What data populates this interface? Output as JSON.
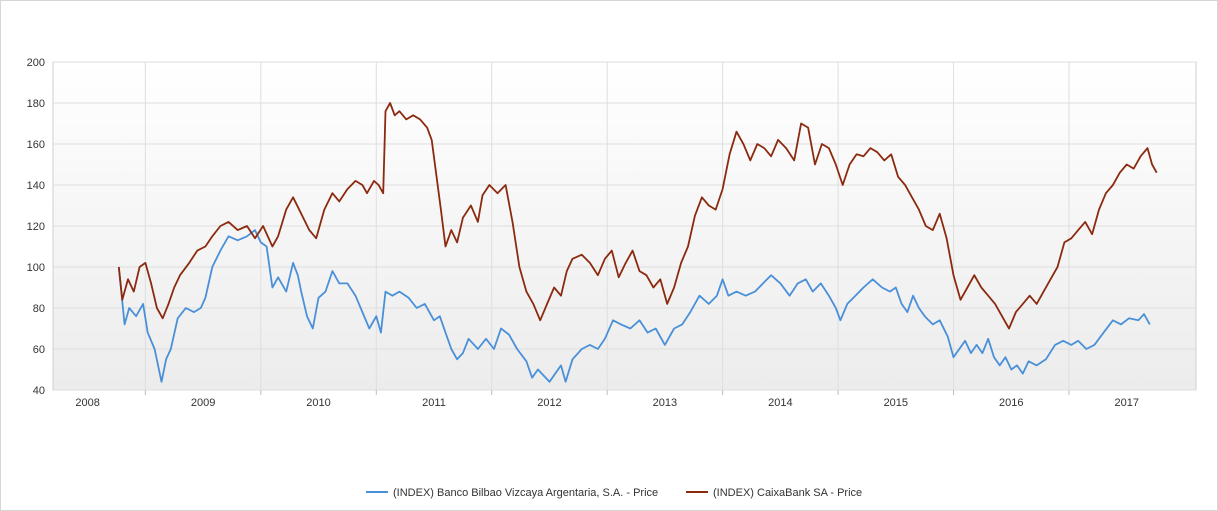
{
  "chart_data": {
    "type": "line",
    "title": "",
    "xlabel": "",
    "ylabel": "",
    "ylim": [
      40,
      200
    ],
    "yticks": [
      40,
      60,
      80,
      100,
      120,
      140,
      160,
      180,
      200
    ],
    "xlim": [
      2007.7,
      2017.6
    ],
    "xticks": [
      {
        "label": "2008",
        "x": 2008.0
      },
      {
        "label": "2009",
        "x": 2009.0
      },
      {
        "label": "2010",
        "x": 2010.0
      },
      {
        "label": "2011",
        "x": 2011.0
      },
      {
        "label": "2012",
        "x": 2012.0
      },
      {
        "label": "2013",
        "x": 2013.0
      },
      {
        "label": "2014",
        "x": 2014.0
      },
      {
        "label": "2015",
        "x": 2015.0
      },
      {
        "label": "2016",
        "x": 2016.0
      },
      {
        "label": "2017",
        "x": 2017.0
      }
    ],
    "grid": true,
    "legend_position": "bottom-center",
    "series": [
      {
        "name": "(INDEX) Banco Bilbao Vizcaya Argentaria, S.A. - Price",
        "color": "#4a90d9",
        "points": [
          [
            2008.27,
            100
          ],
          [
            2008.32,
            72
          ],
          [
            2008.36,
            80
          ],
          [
            2008.42,
            76
          ],
          [
            2008.48,
            82
          ],
          [
            2008.52,
            68
          ],
          [
            2008.58,
            60
          ],
          [
            2008.64,
            44
          ],
          [
            2008.68,
            55
          ],
          [
            2008.72,
            60
          ],
          [
            2008.78,
            75
          ],
          [
            2008.85,
            80
          ],
          [
            2008.92,
            78
          ],
          [
            2008.98,
            80
          ],
          [
            2009.02,
            85
          ],
          [
            2009.08,
            100
          ],
          [
            2009.15,
            108
          ],
          [
            2009.22,
            115
          ],
          [
            2009.3,
            113
          ],
          [
            2009.38,
            115
          ],
          [
            2009.45,
            118
          ],
          [
            2009.5,
            112
          ],
          [
            2009.55,
            110
          ],
          [
            2009.6,
            90
          ],
          [
            2009.65,
            95
          ],
          [
            2009.72,
            88
          ],
          [
            2009.78,
            102
          ],
          [
            2009.82,
            96
          ],
          [
            2009.85,
            88
          ],
          [
            2009.9,
            76
          ],
          [
            2009.95,
            70
          ],
          [
            2010.0,
            85
          ],
          [
            2010.06,
            88
          ],
          [
            2010.12,
            98
          ],
          [
            2010.18,
            92
          ],
          [
            2010.25,
            92
          ],
          [
            2010.32,
            86
          ],
          [
            2010.38,
            78
          ],
          [
            2010.44,
            70
          ],
          [
            2010.5,
            76
          ],
          [
            2010.54,
            68
          ],
          [
            2010.58,
            88
          ],
          [
            2010.64,
            86
          ],
          [
            2010.7,
            88
          ],
          [
            2010.78,
            85
          ],
          [
            2010.85,
            80
          ],
          [
            2010.92,
            82
          ],
          [
            2011.0,
            74
          ],
          [
            2011.05,
            76
          ],
          [
            2011.1,
            68
          ],
          [
            2011.15,
            60
          ],
          [
            2011.2,
            55
          ],
          [
            2011.25,
            58
          ],
          [
            2011.3,
            65
          ],
          [
            2011.38,
            60
          ],
          [
            2011.45,
            65
          ],
          [
            2011.52,
            60
          ],
          [
            2011.58,
            70
          ],
          [
            2011.65,
            67
          ],
          [
            2011.72,
            60
          ],
          [
            2011.8,
            54
          ],
          [
            2011.85,
            46
          ],
          [
            2011.9,
            50
          ],
          [
            2011.95,
            47
          ],
          [
            2012.0,
            44
          ],
          [
            2012.05,
            48
          ],
          [
            2012.1,
            52
          ],
          [
            2012.14,
            44
          ],
          [
            2012.2,
            55
          ],
          [
            2012.28,
            60
          ],
          [
            2012.35,
            62
          ],
          [
            2012.42,
            60
          ],
          [
            2012.48,
            65
          ],
          [
            2012.55,
            74
          ],
          [
            2012.62,
            72
          ],
          [
            2012.7,
            70
          ],
          [
            2012.78,
            74
          ],
          [
            2012.85,
            68
          ],
          [
            2012.92,
            70
          ],
          [
            2013.0,
            62
          ],
          [
            2013.08,
            70
          ],
          [
            2013.15,
            72
          ],
          [
            2013.22,
            78
          ],
          [
            2013.3,
            86
          ],
          [
            2013.38,
            82
          ],
          [
            2013.45,
            86
          ],
          [
            2013.5,
            94
          ],
          [
            2013.55,
            86
          ],
          [
            2013.62,
            88
          ],
          [
            2013.7,
            86
          ],
          [
            2013.78,
            88
          ],
          [
            2013.85,
            92
          ],
          [
            2013.92,
            96
          ],
          [
            2014.0,
            92
          ],
          [
            2014.08,
            86
          ],
          [
            2014.15,
            92
          ],
          [
            2014.22,
            94
          ],
          [
            2014.28,
            88
          ],
          [
            2014.35,
            92
          ],
          [
            2014.42,
            86
          ],
          [
            2014.48,
            80
          ],
          [
            2014.52,
            74
          ],
          [
            2014.58,
            82
          ],
          [
            2014.65,
            86
          ],
          [
            2014.72,
            90
          ],
          [
            2014.8,
            94
          ],
          [
            2014.88,
            90
          ],
          [
            2014.95,
            88
          ],
          [
            2015.0,
            90
          ],
          [
            2015.05,
            82
          ],
          [
            2015.1,
            78
          ],
          [
            2015.15,
            86
          ],
          [
            2015.2,
            80
          ],
          [
            2015.25,
            76
          ],
          [
            2015.32,
            72
          ],
          [
            2015.38,
            74
          ],
          [
            2015.45,
            66
          ],
          [
            2015.5,
            56
          ],
          [
            2015.55,
            60
          ],
          [
            2015.6,
            64
          ],
          [
            2015.65,
            58
          ],
          [
            2015.7,
            62
          ],
          [
            2015.75,
            58
          ],
          [
            2015.8,
            65
          ],
          [
            2015.85,
            56
          ],
          [
            2015.9,
            52
          ],
          [
            2015.95,
            56
          ],
          [
            2016.0,
            50
          ],
          [
            2016.05,
            52
          ],
          [
            2016.1,
            48
          ],
          [
            2016.15,
            54
          ],
          [
            2016.22,
            52
          ],
          [
            2016.3,
            55
          ],
          [
            2016.38,
            62
          ],
          [
            2016.45,
            64
          ],
          [
            2016.52,
            62
          ],
          [
            2016.58,
            64
          ],
          [
            2016.65,
            60
          ],
          [
            2016.72,
            62
          ],
          [
            2016.8,
            68
          ],
          [
            2016.88,
            74
          ],
          [
            2016.95,
            72
          ],
          [
            2017.02,
            75
          ],
          [
            2017.1,
            74
          ],
          [
            2017.15,
            77
          ],
          [
            2017.2,
            72
          ]
        ]
      },
      {
        "name": "(INDEX) CaixaBank SA - Price",
        "color": "#8b2a0e",
        "points": [
          [
            2008.27,
            100
          ],
          [
            2008.3,
            84
          ],
          [
            2008.35,
            94
          ],
          [
            2008.4,
            88
          ],
          [
            2008.45,
            100
          ],
          [
            2008.5,
            102
          ],
          [
            2008.55,
            92
          ],
          [
            2008.6,
            80
          ],
          [
            2008.65,
            75
          ],
          [
            2008.7,
            82
          ],
          [
            2008.75,
            90
          ],
          [
            2008.8,
            96
          ],
          [
            2008.88,
            102
          ],
          [
            2008.95,
            108
          ],
          [
            2009.02,
            110
          ],
          [
            2009.08,
            115
          ],
          [
            2009.15,
            120
          ],
          [
            2009.22,
            122
          ],
          [
            2009.3,
            118
          ],
          [
            2009.38,
            120
          ],
          [
            2009.45,
            114
          ],
          [
            2009.52,
            120
          ],
          [
            2009.6,
            110
          ],
          [
            2009.65,
            115
          ],
          [
            2009.72,
            128
          ],
          [
            2009.78,
            134
          ],
          [
            2009.85,
            126
          ],
          [
            2009.92,
            118
          ],
          [
            2009.98,
            114
          ],
          [
            2010.05,
            128
          ],
          [
            2010.12,
            136
          ],
          [
            2010.18,
            132
          ],
          [
            2010.25,
            138
          ],
          [
            2010.32,
            142
          ],
          [
            2010.38,
            140
          ],
          [
            2010.42,
            136
          ],
          [
            2010.48,
            142
          ],
          [
            2010.52,
            140
          ],
          [
            2010.56,
            136
          ],
          [
            2010.58,
            176
          ],
          [
            2010.62,
            180
          ],
          [
            2010.66,
            174
          ],
          [
            2010.7,
            176
          ],
          [
            2010.76,
            172
          ],
          [
            2010.82,
            174
          ],
          [
            2010.88,
            172
          ],
          [
            2010.94,
            168
          ],
          [
            2010.98,
            162
          ],
          [
            2011.02,
            145
          ],
          [
            2011.06,
            128
          ],
          [
            2011.1,
            110
          ],
          [
            2011.15,
            118
          ],
          [
            2011.2,
            112
          ],
          [
            2011.25,
            124
          ],
          [
            2011.32,
            130
          ],
          [
            2011.38,
            122
          ],
          [
            2011.42,
            135
          ],
          [
            2011.48,
            140
          ],
          [
            2011.55,
            136
          ],
          [
            2011.62,
            140
          ],
          [
            2011.68,
            122
          ],
          [
            2011.74,
            100
          ],
          [
            2011.8,
            88
          ],
          [
            2011.86,
            82
          ],
          [
            2011.92,
            74
          ],
          [
            2011.98,
            82
          ],
          [
            2012.04,
            90
          ],
          [
            2012.1,
            86
          ],
          [
            2012.15,
            98
          ],
          [
            2012.2,
            104
          ],
          [
            2012.28,
            106
          ],
          [
            2012.35,
            102
          ],
          [
            2012.42,
            96
          ],
          [
            2012.48,
            104
          ],
          [
            2012.54,
            108
          ],
          [
            2012.6,
            95
          ],
          [
            2012.66,
            102
          ],
          [
            2012.72,
            108
          ],
          [
            2012.78,
            98
          ],
          [
            2012.84,
            96
          ],
          [
            2012.9,
            90
          ],
          [
            2012.96,
            94
          ],
          [
            2013.02,
            82
          ],
          [
            2013.08,
            90
          ],
          [
            2013.14,
            102
          ],
          [
            2013.2,
            110
          ],
          [
            2013.26,
            125
          ],
          [
            2013.32,
            134
          ],
          [
            2013.38,
            130
          ],
          [
            2013.44,
            128
          ],
          [
            2013.5,
            138
          ],
          [
            2013.56,
            155
          ],
          [
            2013.62,
            166
          ],
          [
            2013.68,
            160
          ],
          [
            2013.74,
            152
          ],
          [
            2013.8,
            160
          ],
          [
            2013.86,
            158
          ],
          [
            2013.92,
            154
          ],
          [
            2013.98,
            162
          ],
          [
            2014.05,
            158
          ],
          [
            2014.12,
            152
          ],
          [
            2014.18,
            170
          ],
          [
            2014.24,
            168
          ],
          [
            2014.3,
            150
          ],
          [
            2014.36,
            160
          ],
          [
            2014.42,
            158
          ],
          [
            2014.48,
            150
          ],
          [
            2014.54,
            140
          ],
          [
            2014.6,
            150
          ],
          [
            2014.66,
            155
          ],
          [
            2014.72,
            154
          ],
          [
            2014.78,
            158
          ],
          [
            2014.84,
            156
          ],
          [
            2014.9,
            152
          ],
          [
            2014.96,
            155
          ],
          [
            2015.02,
            144
          ],
          [
            2015.08,
            140
          ],
          [
            2015.14,
            134
          ],
          [
            2015.2,
            128
          ],
          [
            2015.26,
            120
          ],
          [
            2015.32,
            118
          ],
          [
            2015.38,
            126
          ],
          [
            2015.44,
            114
          ],
          [
            2015.5,
            96
          ],
          [
            2015.56,
            84
          ],
          [
            2015.62,
            90
          ],
          [
            2015.68,
            96
          ],
          [
            2015.74,
            90
          ],
          [
            2015.8,
            86
          ],
          [
            2015.86,
            82
          ],
          [
            2015.92,
            76
          ],
          [
            2015.98,
            70
          ],
          [
            2016.04,
            78
          ],
          [
            2016.1,
            82
          ],
          [
            2016.16,
            86
          ],
          [
            2016.22,
            82
          ],
          [
            2016.28,
            88
          ],
          [
            2016.34,
            94
          ],
          [
            2016.4,
            100
          ],
          [
            2016.46,
            112
          ],
          [
            2016.52,
            114
          ],
          [
            2016.58,
            118
          ],
          [
            2016.64,
            122
          ],
          [
            2016.7,
            116
          ],
          [
            2016.76,
            128
          ],
          [
            2016.82,
            136
          ],
          [
            2016.88,
            140
          ],
          [
            2016.94,
            146
          ],
          [
            2017.0,
            150
          ],
          [
            2017.06,
            148
          ],
          [
            2017.12,
            154
          ],
          [
            2017.18,
            158
          ],
          [
            2017.22,
            150
          ],
          [
            2017.26,
            146
          ]
        ]
      }
    ]
  }
}
